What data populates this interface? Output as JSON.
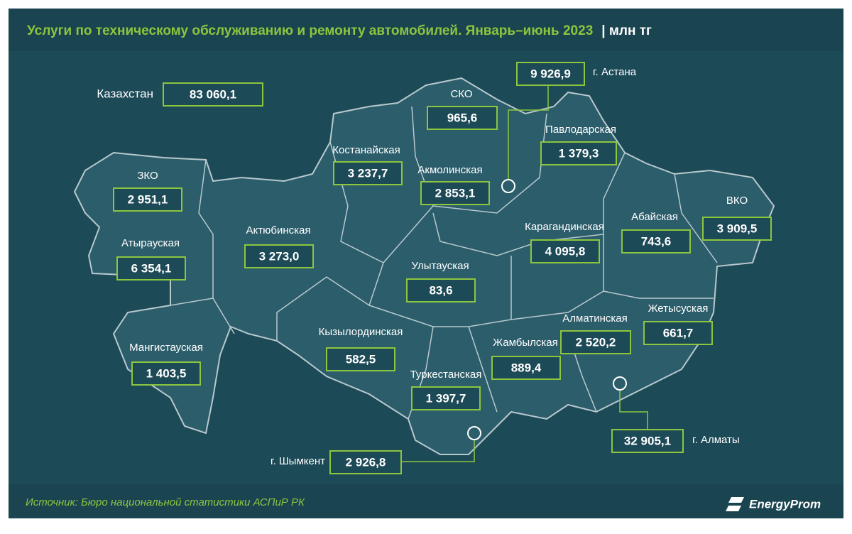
{
  "header": {
    "title": "Услуги по техническому обслуживанию и ремонту автомобилей. Январь–июнь 2023",
    "unit": "| млн тг"
  },
  "total": {
    "label": "Казахстан",
    "value": "83 060,1"
  },
  "regions": [
    {
      "label": "СКО",
      "value": "965,6"
    },
    {
      "label": "г. Астана",
      "value": "9 926,9"
    },
    {
      "label": "Павлодарская",
      "value": "1 379,3"
    },
    {
      "label": "Костанайская",
      "value": "3 237,7"
    },
    {
      "label": "Акмолинская",
      "value": "2 853,1"
    },
    {
      "label": "ЗКО",
      "value": "2 951,1"
    },
    {
      "label": "ВКО",
      "value": "3 909,5"
    },
    {
      "label": "Актюбинская",
      "value": "3 273,0"
    },
    {
      "label": "Абайская",
      "value": "743,6"
    },
    {
      "label": "Карагандинская",
      "value": "4 095,8"
    },
    {
      "label": "Атырауская",
      "value": "6 354,1"
    },
    {
      "label": "Улытауская",
      "value": "83,6"
    },
    {
      "label": "Алматинская",
      "value": "2 520,2"
    },
    {
      "label": "Жетысуская",
      "value": "661,7"
    },
    {
      "label": "Кызылординская",
      "value": "582,5"
    },
    {
      "label": "Жамбылская",
      "value": "889,4"
    },
    {
      "label": "Мангистауская",
      "value": "1 403,5"
    },
    {
      "label": "Туркестанская",
      "value": "1 397,7"
    },
    {
      "label": "г. Алматы",
      "value": "32 905,1"
    },
    {
      "label": "г. Шымкент",
      "value": "2 926,8"
    }
  ],
  "footer": {
    "source": "Источник: Бюро национальной статистики АСПиР РК",
    "logo": "EnergyProm"
  }
}
